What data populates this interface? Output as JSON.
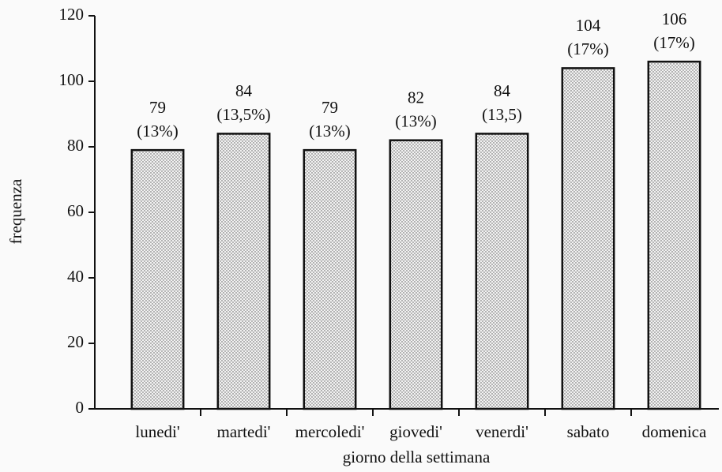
{
  "chart_data": {
    "type": "bar",
    "xlabel": "giorno della settimana",
    "ylabel": "frequenza",
    "categories": [
      "lunedi'",
      "martedi'",
      "mercoledi'",
      "giovedi'",
      "venerdi'",
      "sabato",
      "domenica"
    ],
    "values": [
      79,
      84,
      79,
      82,
      84,
      104,
      106
    ],
    "percent_labels": [
      "(13%)",
      "(13,5%)",
      "(13%)",
      "(13%)",
      "(13,5)",
      "(17%)",
      "(17%)"
    ],
    "color": "#e6e6e6",
    "ylim": [
      0,
      120
    ],
    "yticks": [
      0,
      20,
      40,
      60,
      80,
      100,
      120
    ],
    "grid": false
  }
}
